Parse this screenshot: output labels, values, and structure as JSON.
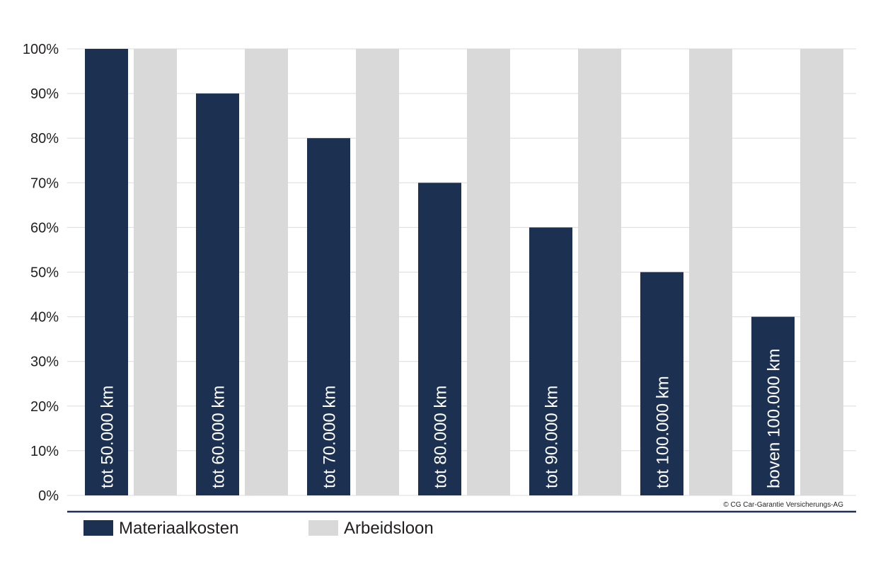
{
  "chart_data": {
    "type": "bar",
    "categories": [
      "tot  50.000 km",
      "tot 60.000 km",
      "tot 70.000 km",
      "tot 80.000 km",
      "tot 90.000 km",
      "tot 100.000 km",
      "boven 100.000 km"
    ],
    "series": [
      {
        "name": "Materiaalkosten",
        "color": "#1c3152",
        "values": [
          100,
          90,
          80,
          70,
          60,
          50,
          40
        ]
      },
      {
        "name": "Arbeidsloon",
        "color": "#d9d9da",
        "values": [
          100,
          100,
          100,
          100,
          100,
          100,
          100
        ]
      }
    ],
    "y_ticks": [
      "0%",
      "10%",
      "20%",
      "30%",
      "40%",
      "50%",
      "60%",
      "70%",
      "80%",
      "90%",
      "100%"
    ],
    "ylim": [
      0,
      100
    ],
    "grid": true,
    "legend_position": "bottom-left",
    "title": "",
    "xlabel": "",
    "ylabel": ""
  },
  "copyright": "© CG Car-Garantie Versicherungs-AG"
}
